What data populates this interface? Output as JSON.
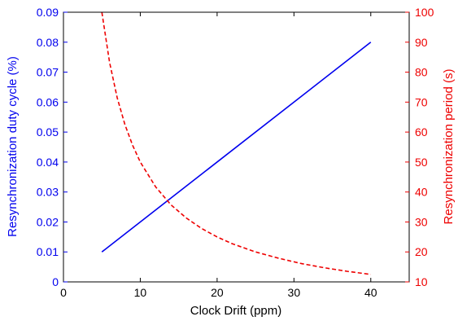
{
  "chart_data": {
    "type": "line",
    "title": "",
    "xlabel": "Clock Drift (ppm)",
    "ylabel_left": "Resynchronization duty cycle (%)",
    "ylabel_right": "Resynchronization period (s)",
    "xlim": [
      0,
      45
    ],
    "ylim_left": [
      0,
      0.09
    ],
    "ylim_right": [
      10,
      100
    ],
    "x_ticks": [
      "0",
      "10",
      "20",
      "30",
      "40"
    ],
    "x_tick_values": [
      0,
      10,
      20,
      30,
      40
    ],
    "y_left_ticks": [
      "0",
      "0.01",
      "0.02",
      "0.03",
      "0.04",
      "0.05",
      "0.06",
      "0.07",
      "0.08",
      "0.09"
    ],
    "y_left_tick_values": [
      0,
      0.01,
      0.02,
      0.03,
      0.04,
      0.05,
      0.06,
      0.07,
      0.08,
      0.09
    ],
    "y_right_ticks": [
      "10",
      "20",
      "30",
      "40",
      "50",
      "60",
      "70",
      "80",
      "90",
      "100"
    ],
    "y_right_tick_values": [
      10,
      20,
      30,
      40,
      50,
      60,
      70,
      80,
      90,
      100
    ],
    "grid": false,
    "series": [
      {
        "axis": "left",
        "color": "#0000ee",
        "style": "solid",
        "x": [
          5,
          40
        ],
        "y": [
          0.01,
          0.08
        ]
      },
      {
        "axis": "right",
        "color": "#ee0000",
        "style": "dashed",
        "x": [
          5,
          6,
          7,
          8,
          9,
          10,
          12,
          14,
          16,
          18,
          20,
          22,
          25,
          28,
          31,
          34,
          37,
          40
        ],
        "y": [
          100,
          83.3,
          71.4,
          62.5,
          55.6,
          50,
          41.7,
          35.7,
          31.3,
          27.8,
          25,
          22.7,
          20,
          17.9,
          16.1,
          14.7,
          13.5,
          12.5
        ]
      }
    ]
  }
}
